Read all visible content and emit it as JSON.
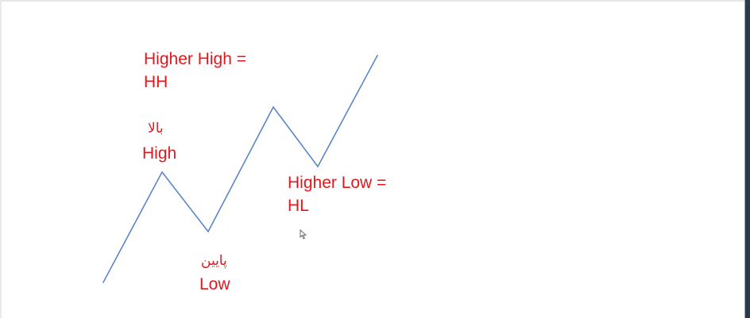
{
  "labels": {
    "higher_high": "Higher High =\nHH",
    "high_fa": "بالا",
    "high": "High",
    "higher_low": "Higher Low =\nHL",
    "low_fa": "پایین",
    "low": "Low"
  },
  "colors": {
    "label": "#e0181d",
    "line": "#5b86c8"
  },
  "icons": {
    "cursor": "mouse-pointer-icon"
  }
}
